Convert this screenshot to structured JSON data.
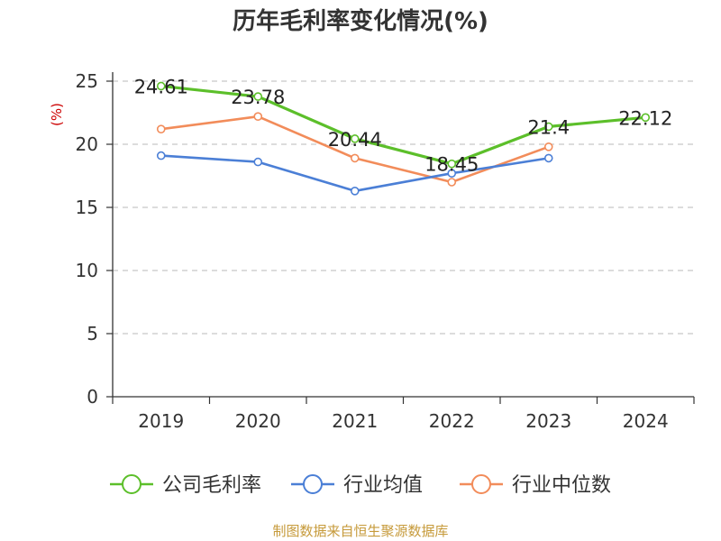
{
  "title": "历年毛利率变化情况(%)",
  "footer": "制图数据来自恒生聚源数据库",
  "chart_data": {
    "type": "line",
    "title": "历年毛利率变化情况(%)",
    "xlabel": "",
    "ylabel": "(%)",
    "categories": [
      "2019",
      "2020",
      "2021",
      "2022",
      "2023",
      "2024"
    ],
    "ylim": [
      0,
      25
    ],
    "yticks": [
      0,
      5,
      10,
      15,
      20,
      25
    ],
    "grid": true,
    "legend_position": "bottom",
    "series": [
      {
        "name": "公司毛利率",
        "color": "#5cbf2a",
        "values": [
          24.61,
          23.78,
          20.44,
          18.45,
          21.4,
          22.12
        ],
        "show_labels": true
      },
      {
        "name": "行业均值",
        "color": "#4b7fd6",
        "values": [
          19.1,
          18.6,
          16.3,
          17.7,
          18.9,
          null
        ],
        "show_labels": false
      },
      {
        "name": "行业中位数",
        "color": "#f28c5a",
        "values": [
          21.2,
          22.2,
          18.9,
          17.0,
          19.8,
          null
        ],
        "show_labels": false
      }
    ]
  }
}
